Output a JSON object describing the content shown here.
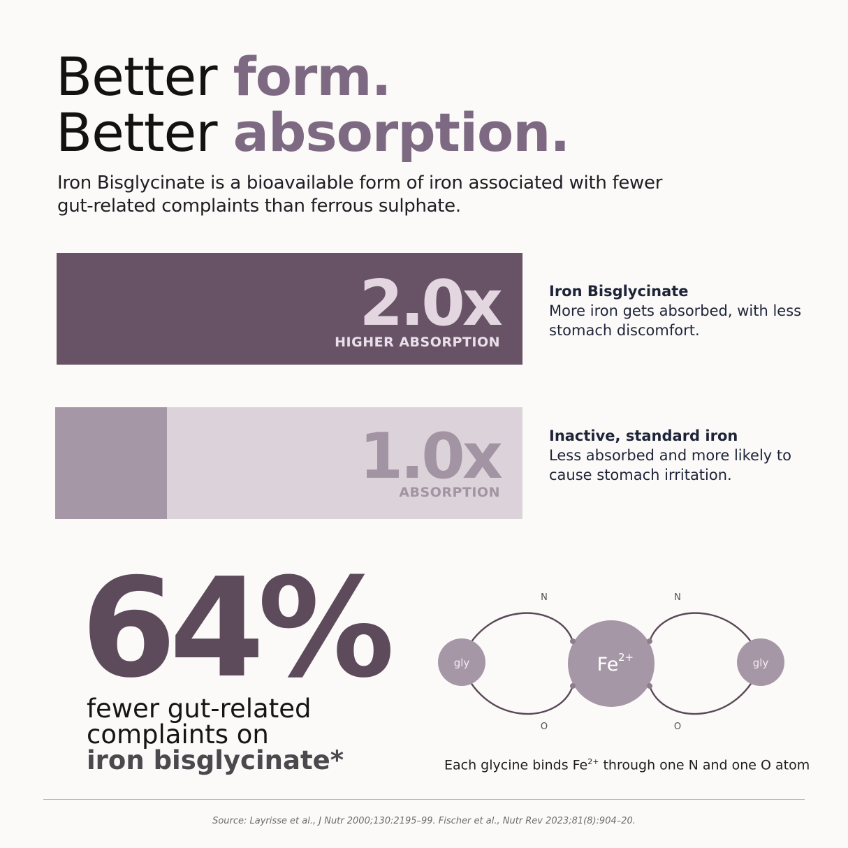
{
  "headline": {
    "line1_plain": "Better ",
    "line1_accent": "form.",
    "line2_plain": "Better ",
    "line2_accent": "absorption."
  },
  "intro": "Iron Bisglycinate is a bioavailable form of iron associated with fewer gut-related complaints than ferrous sulphate.",
  "comparison": [
    {
      "value": "2.0x",
      "caption": "HIGHER ABSORPTION",
      "title": "Iron Bisglycinate",
      "description": "More iron gets absorbed, with less stomach discomfort."
    },
    {
      "value": "1.0x",
      "caption": "ABSORPTION",
      "title": "Inactive, standard iron",
      "description": "Less absorbed and more likely to cause stomach irritation."
    }
  ],
  "stat": {
    "value": "64%",
    "line1": "fewer gut-related",
    "line2": "complaints on",
    "line3": "iron bisglycinate*"
  },
  "diagram": {
    "center_label": "Fe",
    "center_charge": "2+",
    "left_label": "gly",
    "right_label": "gly",
    "n_label": "N",
    "o_label": "O",
    "caption_prefix": "Each glycine binds Fe",
    "caption_charge": "2+",
    "caption_suffix": " through one N and one O atom"
  },
  "source": "Source: Layrisse et al., J Nutr 2000;130:2195–99. Fischer et al., Nutr Rev 2023;81(8):904–20.",
  "colors": {
    "background": "#fbfaf8",
    "accent": "#7d6a82",
    "bar_dark": "#675266",
    "bar_light": "#dcd3da",
    "bar_fill": "#a697a6",
    "stat": "#5d4b5c"
  }
}
